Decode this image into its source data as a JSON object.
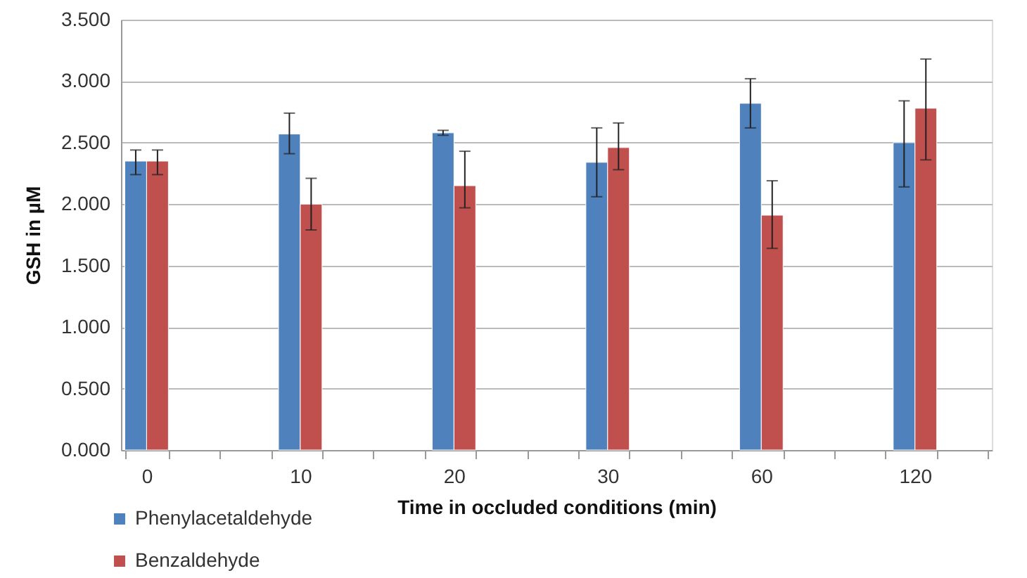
{
  "chart_data": {
    "type": "bar",
    "xlabel": "Time in occluded conditions (min)",
    "ylabel": "GSH in µM",
    "categories": [
      "0",
      null,
      null,
      "10",
      null,
      null,
      "20",
      null,
      null,
      "30",
      null,
      null,
      "60",
      null,
      null,
      "120",
      null
    ],
    "series": [
      {
        "name": "Phenylacetaldehyde",
        "color": "#4f81bd",
        "values": [
          2.35,
          null,
          null,
          2.57,
          null,
          null,
          2.58,
          null,
          null,
          2.34,
          null,
          null,
          2.82,
          null,
          null,
          2.5,
          null
        ],
        "errors": [
          [
            2.24,
            2.44
          ],
          null,
          null,
          [
            2.41,
            2.74
          ],
          null,
          null,
          [
            2.56,
            2.6
          ],
          null,
          null,
          [
            2.06,
            2.62
          ],
          null,
          null,
          [
            2.62,
            3.02
          ],
          null,
          null,
          [
            2.14,
            2.84
          ],
          null
        ]
      },
      {
        "name": "Benzaldehyde",
        "color": "#c0504d",
        "values": [
          2.35,
          null,
          null,
          2.0,
          null,
          null,
          2.15,
          null,
          null,
          2.46,
          null,
          null,
          1.91,
          null,
          null,
          2.78,
          null
        ],
        "errors": [
          [
            2.24,
            2.44
          ],
          null,
          null,
          [
            1.79,
            2.21
          ],
          null,
          null,
          [
            1.97,
            2.43
          ],
          null,
          null,
          [
            2.28,
            2.66
          ],
          null,
          null,
          [
            1.64,
            2.19
          ],
          null,
          null,
          [
            2.36,
            3.18
          ],
          null
        ]
      }
    ],
    "ylim": [
      0,
      3.5
    ],
    "yticks": [
      {
        "value": 0,
        "label": "0.000"
      },
      {
        "value": 0.5,
        "label": "0.500"
      },
      {
        "value": 1,
        "label": "1.000"
      },
      {
        "value": 1.5,
        "label": "1.500"
      },
      {
        "value": 2,
        "label": "2.000"
      },
      {
        "value": 2.5,
        "label": "2.500"
      },
      {
        "value": 3,
        "label": "3.000"
      },
      {
        "value": 3.5,
        "label": "3.500"
      }
    ],
    "grid": "y",
    "legend": "bottom left"
  }
}
